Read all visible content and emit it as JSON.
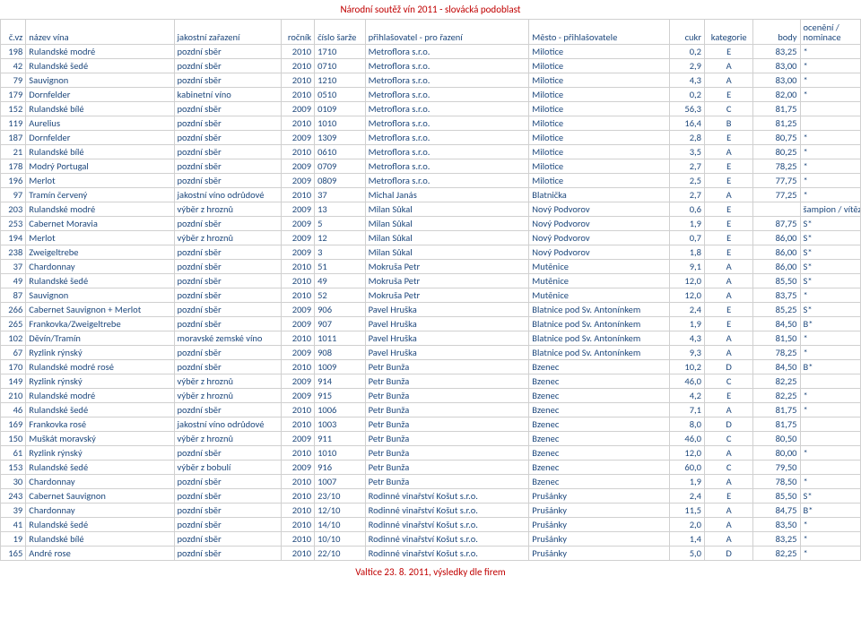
{
  "title": "Národní soutěž vín 2011 - slovácká podoblast",
  "footer": "Valtice 23. 8. 2011, výsledky dle firem",
  "headers": {
    "num": "č.vz",
    "wine": "název vína",
    "class": "jakostní zařazení",
    "year": "ročník",
    "batch": "číslo šarže",
    "applicant": "přihlašovatel - pro řazení",
    "city": "Město - přihlašovatele",
    "sugar": "cukr",
    "cat": "kategorie",
    "points": "body",
    "award": "ocenění / nominace"
  },
  "rows": [
    [
      "198",
      "Rulandské modré",
      "pozdní sběr",
      "2010",
      "1710",
      "Metroflora s.r.o.",
      "Milotice",
      "0,2",
      "E",
      "83,25",
      "*"
    ],
    [
      "42",
      "Rulandské šedé",
      "pozdní sběr",
      "2010",
      "0710",
      "Metroflora s.r.o.",
      "Milotice",
      "2,9",
      "A",
      "83,00",
      "*"
    ],
    [
      "79",
      "Sauvignon",
      "pozdní sběr",
      "2010",
      "1210",
      "Metroflora s.r.o.",
      "Milotice",
      "4,3",
      "A",
      "83,00",
      "*"
    ],
    [
      "179",
      "Dornfelder",
      "kabinetní víno",
      "2010",
      "0510",
      "Metroflora s.r.o.",
      "Milotice",
      "0,2",
      "E",
      "82,00",
      "*"
    ],
    [
      "152",
      "Rulandské bílé",
      "pozdní sběr",
      "2009",
      "0109",
      "Metroflora s.r.o.",
      "Milotice",
      "56,3",
      "C",
      "81,75",
      ""
    ],
    [
      "119",
      "Aurelius",
      "pozdní sběr",
      "2010",
      "1010",
      "Metroflora s.r.o.",
      "Milotice",
      "16,4",
      "B",
      "81,25",
      ""
    ],
    [
      "187",
      "Dornfelder",
      "pozdní sběr",
      "2009",
      "1309",
      "Metroflora s.r.o.",
      "Milotice",
      "2,8",
      "E",
      "80,75",
      "*"
    ],
    [
      "21",
      "Rulandské bílé",
      "pozdní sběr",
      "2010",
      "0610",
      "Metroflora s.r.o.",
      "Milotice",
      "3,5",
      "A",
      "80,25",
      "*"
    ],
    [
      "178",
      "Modrý Portugal",
      "pozdní sběr",
      "2009",
      "0709",
      "Metroflora s.r.o.",
      "Milotice",
      "2,7",
      "E",
      "78,25",
      "*"
    ],
    [
      "196",
      "Merlot",
      "pozdní sběr",
      "2009",
      "0809",
      "Metroflora s.r.o.",
      "Milotice",
      "2,5",
      "E",
      "77,75",
      "*"
    ],
    [
      "97",
      "Tramín červený",
      "jakostní víno odrůdové",
      "2010",
      "37",
      "Michal Janás",
      "Blatnička",
      "2,7",
      "A",
      "77,25",
      "*"
    ],
    [
      "203",
      "Rulandské modré",
      "výběr z hroznů",
      "2009",
      "13",
      "Milan Sůkal",
      "Nový Podvorov",
      "0,6",
      "E",
      "",
      "šampion / vítěz kategorie E Z*"
    ],
    [
      "253",
      "Cabernet Moravia",
      "pozdní sběr",
      "2009",
      "5",
      "Milan Sůkal",
      "Nový Podvorov",
      "1,9",
      "E",
      "87,75",
      "S*"
    ],
    [
      "194",
      "Merlot",
      "výběr z hroznů",
      "2009",
      "12",
      "Milan Sůkal",
      "Nový Podvorov",
      "0,7",
      "E",
      "86,00",
      "S*"
    ],
    [
      "238",
      "Zweigeltrebe",
      "pozdní sběr",
      "2009",
      "3",
      "Milan Sůkal",
      "Nový Podvorov",
      "1,8",
      "E",
      "86,00",
      "S*"
    ],
    [
      "37",
      "Chardonnay",
      "pozdní sběr",
      "2010",
      "51",
      "Mokruša Petr",
      "Mutěnice",
      "9,1",
      "A",
      "86,00",
      "S*"
    ],
    [
      "49",
      "Rulandské šedé",
      "pozdní sběr",
      "2010",
      "49",
      "Mokruša Petr",
      "Mutěnice",
      "12,0",
      "A",
      "85,50",
      "S*"
    ],
    [
      "87",
      "Sauvignon",
      "pozdní sběr",
      "2010",
      "52",
      "Mokruša Petr",
      "Mutěnice",
      "12,0",
      "A",
      "83,75",
      "*"
    ],
    [
      "266",
      "Cabernet Sauvignon + Merlot",
      "pozdní sběr",
      "2009",
      "906",
      "Pavel Hruška",
      "Blatnice pod Sv. Antonínkem",
      "2,4",
      "E",
      "85,25",
      "S*"
    ],
    [
      "265",
      "Frankovka/Zweigeltrebe",
      "pozdní sběr",
      "2009",
      "907",
      "Pavel Hruška",
      "Blatnice pod Sv. Antonínkem",
      "1,9",
      "E",
      "84,50",
      "B*"
    ],
    [
      "102",
      "Děvín/Tramín",
      "moravské zemské víno",
      "2010",
      "1011",
      "Pavel Hruška",
      "Blatnice pod Sv. Antonínkem",
      "4,3",
      "A",
      "81,50",
      "*"
    ],
    [
      "67",
      "Ryzlink rýnský",
      "pozdní sběr",
      "2009",
      "908",
      "Pavel Hruška",
      "Blatnice pod Sv. Antonínkem",
      "9,3",
      "A",
      "78,25",
      "*"
    ],
    [
      "170",
      "Rulandské modré rosé",
      "pozdní sběr",
      "2010",
      "1009",
      "Petr Bunža",
      "Bzenec",
      "10,2",
      "D",
      "84,50",
      "B*"
    ],
    [
      "149",
      "Ryzlink rýnský",
      "výběr z hroznů",
      "2009",
      "914",
      "Petr Bunža",
      "Bzenec",
      "46,0",
      "C",
      "82,25",
      ""
    ],
    [
      "210",
      "Rulandské modré",
      "výběr z hroznů",
      "2009",
      "915",
      "Petr Bunža",
      "Bzenec",
      "4,2",
      "E",
      "82,25",
      "*"
    ],
    [
      "46",
      "Rulandské šedé",
      "pozdní sběr",
      "2010",
      "1006",
      "Petr Bunža",
      "Bzenec",
      "7,1",
      "A",
      "81,75",
      "*"
    ],
    [
      "169",
      "Frankovka rosé",
      "jakostní víno odrůdové",
      "2010",
      "1003",
      "Petr Bunža",
      "Bzenec",
      "8,0",
      "D",
      "81,75",
      ""
    ],
    [
      "150",
      "Muškát moravský",
      "výběr z hroznů",
      "2009",
      "911",
      "Petr Bunža",
      "Bzenec",
      "46,0",
      "C",
      "80,50",
      ""
    ],
    [
      "61",
      "Ryzlink rýnský",
      "pozdní sběr",
      "2010",
      "1010",
      "Petr Bunža",
      "Bzenec",
      "12,0",
      "A",
      "80,00",
      "*"
    ],
    [
      "153",
      "Rulandské šedé",
      "výběr z bobulí",
      "2009",
      "916",
      "Petr Bunža",
      "Bzenec",
      "60,0",
      "C",
      "79,50",
      ""
    ],
    [
      "30",
      "Chardonnay",
      "pozdní sběr",
      "2010",
      "1007",
      "Petr Bunža",
      "Bzenec",
      "1,9",
      "A",
      "78,50",
      "*"
    ],
    [
      "243",
      "Cabernet Sauvignon",
      "pozdní sběr",
      "2010",
      "23/10",
      "Rodinné vinařství Košut s.r.o.",
      "Prušánky",
      "2,4",
      "E",
      "85,50",
      "S*"
    ],
    [
      "39",
      "Chardonnay",
      "pozdní sběr",
      "2010",
      "12/10",
      "Rodinné vinařství Košut s.r.o.",
      "Prušánky",
      "11,5",
      "A",
      "84,75",
      "B*"
    ],
    [
      "41",
      "Rulandské šedé",
      "pozdní sběr",
      "2010",
      "14/10",
      "Rodinné vinařství Košut s.r.o.",
      "Prušánky",
      "2,0",
      "A",
      "83,50",
      "*"
    ],
    [
      "19",
      "Rulandské bílé",
      "pozdní sběr",
      "2010",
      "10/10",
      "Rodinné vinařství Košut s.r.o.",
      "Prušánky",
      "1,4",
      "A",
      "83,25",
      "*"
    ],
    [
      "165",
      "André rose",
      "pozdní sběr",
      "2010",
      "22/10",
      "Rodinné vinařství Košut s.r.o.",
      "Prušánky",
      "5,0",
      "D",
      "82,25",
      "*"
    ]
  ]
}
